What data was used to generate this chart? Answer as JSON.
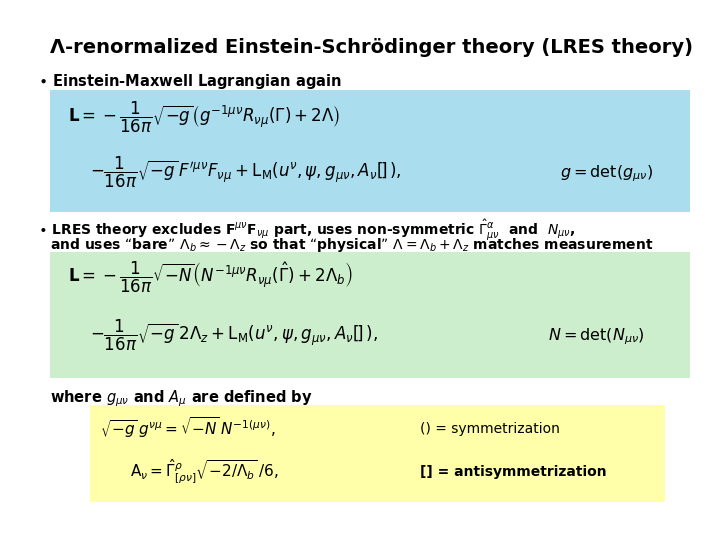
{
  "title": "Λ-renormalized Einstein-Schrödinger theory (LRES theory)",
  "bg_color": "#ffffff",
  "box1_color": "#aaddee",
  "box2_color": "#cceecc",
  "box3_color": "#ffffaa",
  "bullet1_text": "Einstein-Maxwell Lagrangian again",
  "bullet2_line1": "LRES theory excludes F",
  "bullet2_line2": "and uses “bare” Λ",
  "where_text": "where g",
  "title_fs": 14,
  "bullet_fs": 10,
  "eq_fs": 10,
  "small_fs": 9
}
